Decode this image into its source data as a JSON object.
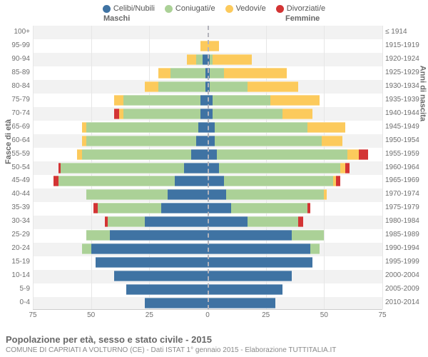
{
  "title": "Popolazione per età, sesso e stato civile - 2015",
  "subtitle": "COMUNE DI CAPRIATI A VOLTURNO (CE) - Dati ISTAT 1° gennaio 2015 - Elaborazione TUTTITALIA.IT",
  "legend": [
    {
      "label": "Celibi/Nubili",
      "color": "#3f73a3"
    },
    {
      "label": "Coniugati/e",
      "color": "#abd197"
    },
    {
      "label": "Vedovi/e",
      "color": "#fcca5c"
    },
    {
      "label": "Divorziati/e",
      "color": "#d33434"
    }
  ],
  "headers": {
    "male": "Maschi",
    "female": "Femmine"
  },
  "axis_labels": {
    "left": "Fasce di età",
    "right": "Anni di nascita"
  },
  "xaxis": {
    "max": 75,
    "ticks": [
      75,
      50,
      25,
      0,
      25,
      50,
      75
    ]
  },
  "age_groups": [
    {
      "age": "100+",
      "year": "≤ 1914",
      "m": [
        0,
        0,
        0,
        0
      ],
      "f": [
        0,
        0,
        0,
        0
      ]
    },
    {
      "age": "95-99",
      "year": "1915-1919",
      "m": [
        0,
        0,
        3,
        0
      ],
      "f": [
        0,
        0,
        5,
        0
      ]
    },
    {
      "age": "90-94",
      "year": "1920-1924",
      "m": [
        2,
        3,
        4,
        0
      ],
      "f": [
        1,
        1,
        17,
        0
      ]
    },
    {
      "age": "85-89",
      "year": "1925-1929",
      "m": [
        1,
        15,
        5,
        0
      ],
      "f": [
        1,
        6,
        27,
        0
      ]
    },
    {
      "age": "80-84",
      "year": "1930-1934",
      "m": [
        1,
        20,
        6,
        0
      ],
      "f": [
        1,
        16,
        22,
        0
      ]
    },
    {
      "age": "75-79",
      "year": "1935-1939",
      "m": [
        3,
        33,
        4,
        0
      ],
      "f": [
        2,
        25,
        21,
        0
      ]
    },
    {
      "age": "70-74",
      "year": "1940-1944",
      "m": [
        3,
        33,
        2,
        2
      ],
      "f": [
        2,
        30,
        13,
        0
      ]
    },
    {
      "age": "65-69",
      "year": "1945-1949",
      "m": [
        4,
        48,
        2,
        0
      ],
      "f": [
        3,
        40,
        16,
        0
      ]
    },
    {
      "age": "60-64",
      "year": "1950-1954",
      "m": [
        5,
        47,
        2,
        0
      ],
      "f": [
        3,
        46,
        9,
        0
      ]
    },
    {
      "age": "55-59",
      "year": "1955-1959",
      "m": [
        7,
        47,
        2,
        0
      ],
      "f": [
        4,
        56,
        5,
        4
      ]
    },
    {
      "age": "50-54",
      "year": "1960-1964",
      "m": [
        10,
        53,
        0,
        1
      ],
      "f": [
        5,
        52,
        2,
        2
      ]
    },
    {
      "age": "45-49",
      "year": "1965-1969",
      "m": [
        14,
        50,
        0,
        2
      ],
      "f": [
        7,
        47,
        1,
        2
      ]
    },
    {
      "age": "40-44",
      "year": "1970-1974",
      "m": [
        17,
        35,
        0,
        0
      ],
      "f": [
        8,
        42,
        1,
        0
      ]
    },
    {
      "age": "35-39",
      "year": "1975-1979",
      "m": [
        20,
        27,
        0,
        2
      ],
      "f": [
        10,
        33,
        0,
        1
      ]
    },
    {
      "age": "30-34",
      "year": "1980-1984",
      "m": [
        27,
        16,
        0,
        1
      ],
      "f": [
        17,
        22,
        0,
        2
      ]
    },
    {
      "age": "25-29",
      "year": "1985-1989",
      "m": [
        42,
        10,
        0,
        0
      ],
      "f": [
        36,
        14,
        0,
        0
      ]
    },
    {
      "age": "20-24",
      "year": "1990-1994",
      "m": [
        50,
        4,
        0,
        0
      ],
      "f": [
        44,
        4,
        0,
        0
      ]
    },
    {
      "age": "15-19",
      "year": "1995-1999",
      "m": [
        48,
        0,
        0,
        0
      ],
      "f": [
        45,
        0,
        0,
        0
      ]
    },
    {
      "age": "10-14",
      "year": "2000-2004",
      "m": [
        40,
        0,
        0,
        0
      ],
      "f": [
        36,
        0,
        0,
        0
      ]
    },
    {
      "age": "5-9",
      "year": "2005-2009",
      "m": [
        35,
        0,
        0,
        0
      ],
      "f": [
        32,
        0,
        0,
        0
      ]
    },
    {
      "age": "0-4",
      "year": "2010-2014",
      "m": [
        27,
        0,
        0,
        0
      ],
      "f": [
        29,
        0,
        0,
        0
      ]
    }
  ]
}
